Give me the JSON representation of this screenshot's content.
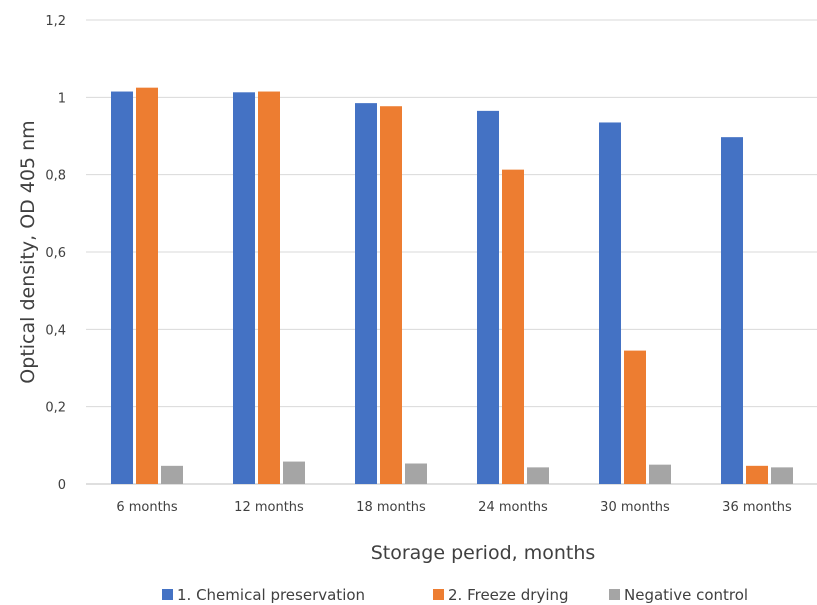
{
  "chart_data": {
    "type": "bar",
    "title": "",
    "xlabel": "Storage period, months",
    "ylabel": "Optical density, OD 405 nm",
    "categories": [
      "6 months",
      "12 months",
      "18 months",
      "24 months",
      "30 months",
      "36 months"
    ],
    "ylim": [
      0,
      1.2
    ],
    "yticks": [
      "0",
      "0,2",
      "0,4",
      "0,6",
      "0,8",
      "1",
      "1,2"
    ],
    "ytick_values": [
      0,
      0.2,
      0.4,
      0.6,
      0.8,
      1.0,
      1.2
    ],
    "grid": true,
    "legend_position": "bottom",
    "series": [
      {
        "name": "1. Chemical preservation",
        "color": "#4472C4",
        "values": [
          1.015,
          1.013,
          0.985,
          0.965,
          0.935,
          0.897
        ]
      },
      {
        "name": "2. Freeze drying",
        "color": "#ED7D31",
        "values": [
          1.025,
          1.015,
          0.977,
          0.813,
          0.345,
          0.047
        ]
      },
      {
        "name": "Negative control",
        "color": "#A5A5A5",
        "values": [
          0.047,
          0.058,
          0.053,
          0.043,
          0.05,
          0.043
        ]
      }
    ]
  }
}
